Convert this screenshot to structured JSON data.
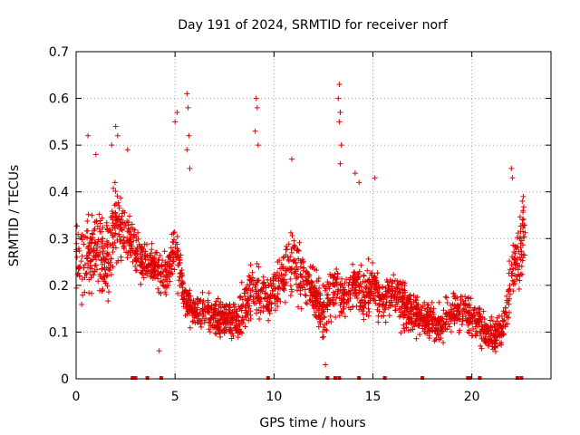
{
  "chart_data": {
    "type": "scatter",
    "title": "Day 191 of 2024, SRMTID for receiver norf",
    "xlabel": "GPS time / hours",
    "ylabel": "SRMTID / TECUs",
    "xlim": [
      0,
      24
    ],
    "ylim": [
      0,
      0.7
    ],
    "xticks": [
      0,
      5,
      10,
      15,
      20
    ],
    "xtick_labels": [
      "0",
      "5",
      "10",
      "15",
      "20"
    ],
    "yticks": [
      0,
      0.1,
      0.2,
      0.3,
      0.4,
      0.5,
      0.6,
      0.7
    ],
    "ytick_labels": [
      "0",
      "0.1",
      "0.2",
      "0.3",
      "0.4",
      "0.5",
      "0.6",
      "0.7"
    ],
    "grid": true,
    "marker": "plus",
    "color": "#e00000",
    "generation_note_removed": true,
    "trend": {
      "x": [
        0,
        0.5,
        1.0,
        1.5,
        2.0,
        2.5,
        3.0,
        3.5,
        4.0,
        4.5,
        5.0,
        5.5,
        6.0,
        6.5,
        7.0,
        7.5,
        8.0,
        8.5,
        9.0,
        9.5,
        10.0,
        10.5,
        11.0,
        11.5,
        12.0,
        12.5,
        13.0,
        13.5,
        14.0,
        14.5,
        15.0,
        15.5,
        16.0,
        16.5,
        17.0,
        17.5,
        18.0,
        18.5,
        19.0,
        19.5,
        20.0,
        20.5,
        21.0,
        21.5,
        22.0,
        22.5,
        22.7
      ],
      "y": [
        0.28,
        0.24,
        0.27,
        0.25,
        0.33,
        0.31,
        0.27,
        0.25,
        0.24,
        0.22,
        0.28,
        0.17,
        0.14,
        0.15,
        0.13,
        0.13,
        0.12,
        0.15,
        0.2,
        0.17,
        0.18,
        0.22,
        0.25,
        0.21,
        0.19,
        0.14,
        0.2,
        0.17,
        0.2,
        0.18,
        0.2,
        0.17,
        0.19,
        0.16,
        0.14,
        0.13,
        0.12,
        0.12,
        0.15,
        0.15,
        0.13,
        0.11,
        0.09,
        0.1,
        0.22,
        0.28,
        0.3
      ],
      "spread": [
        0.1,
        0.11,
        0.1,
        0.12,
        0.12,
        0.08,
        0.06,
        0.06,
        0.05,
        0.06,
        0.08,
        0.05,
        0.05,
        0.05,
        0.05,
        0.05,
        0.05,
        0.06,
        0.08,
        0.06,
        0.06,
        0.07,
        0.08,
        0.07,
        0.07,
        0.06,
        0.08,
        0.07,
        0.07,
        0.07,
        0.07,
        0.06,
        0.06,
        0.06,
        0.05,
        0.05,
        0.05,
        0.05,
        0.05,
        0.05,
        0.05,
        0.05,
        0.05,
        0.05,
        0.09,
        0.09,
        0.08
      ]
    },
    "peaks": [
      {
        "x": 2.0,
        "y": 0.54
      },
      {
        "x": 2.1,
        "y": 0.52
      },
      {
        "x": 1.8,
        "y": 0.5
      },
      {
        "x": 1.0,
        "y": 0.48
      },
      {
        "x": 0.6,
        "y": 0.52
      },
      {
        "x": 2.6,
        "y": 0.49
      },
      {
        "x": 5.1,
        "y": 0.57
      },
      {
        "x": 5.0,
        "y": 0.55
      },
      {
        "x": 5.6,
        "y": 0.61
      },
      {
        "x": 5.65,
        "y": 0.58
      },
      {
        "x": 5.7,
        "y": 0.52
      },
      {
        "x": 5.6,
        "y": 0.49
      },
      {
        "x": 5.75,
        "y": 0.45
      },
      {
        "x": 9.1,
        "y": 0.6
      },
      {
        "x": 9.15,
        "y": 0.58
      },
      {
        "x": 9.05,
        "y": 0.53
      },
      {
        "x": 9.2,
        "y": 0.5
      },
      {
        "x": 10.9,
        "y": 0.47
      },
      {
        "x": 13.3,
        "y": 0.63
      },
      {
        "x": 13.25,
        "y": 0.6
      },
      {
        "x": 13.35,
        "y": 0.57
      },
      {
        "x": 13.3,
        "y": 0.55
      },
      {
        "x": 13.4,
        "y": 0.5
      },
      {
        "x": 13.35,
        "y": 0.46
      },
      {
        "x": 14.3,
        "y": 0.42
      },
      {
        "x": 14.1,
        "y": 0.44
      },
      {
        "x": 15.1,
        "y": 0.43
      },
      {
        "x": 22.0,
        "y": 0.45
      },
      {
        "x": 22.05,
        "y": 0.43
      },
      {
        "x": 22.6,
        "y": 0.39
      },
      {
        "x": 22.55,
        "y": 0.38
      },
      {
        "x": 4.2,
        "y": 0.06
      },
      {
        "x": 12.6,
        "y": 0.03
      }
    ],
    "zero_points": [
      2.85,
      3.0,
      3.6,
      4.3,
      9.7,
      12.7,
      13.1,
      13.3,
      14.3,
      15.6,
      17.5,
      19.8,
      19.9,
      20.4,
      22.3,
      22.5
    ],
    "seed": 191
  }
}
